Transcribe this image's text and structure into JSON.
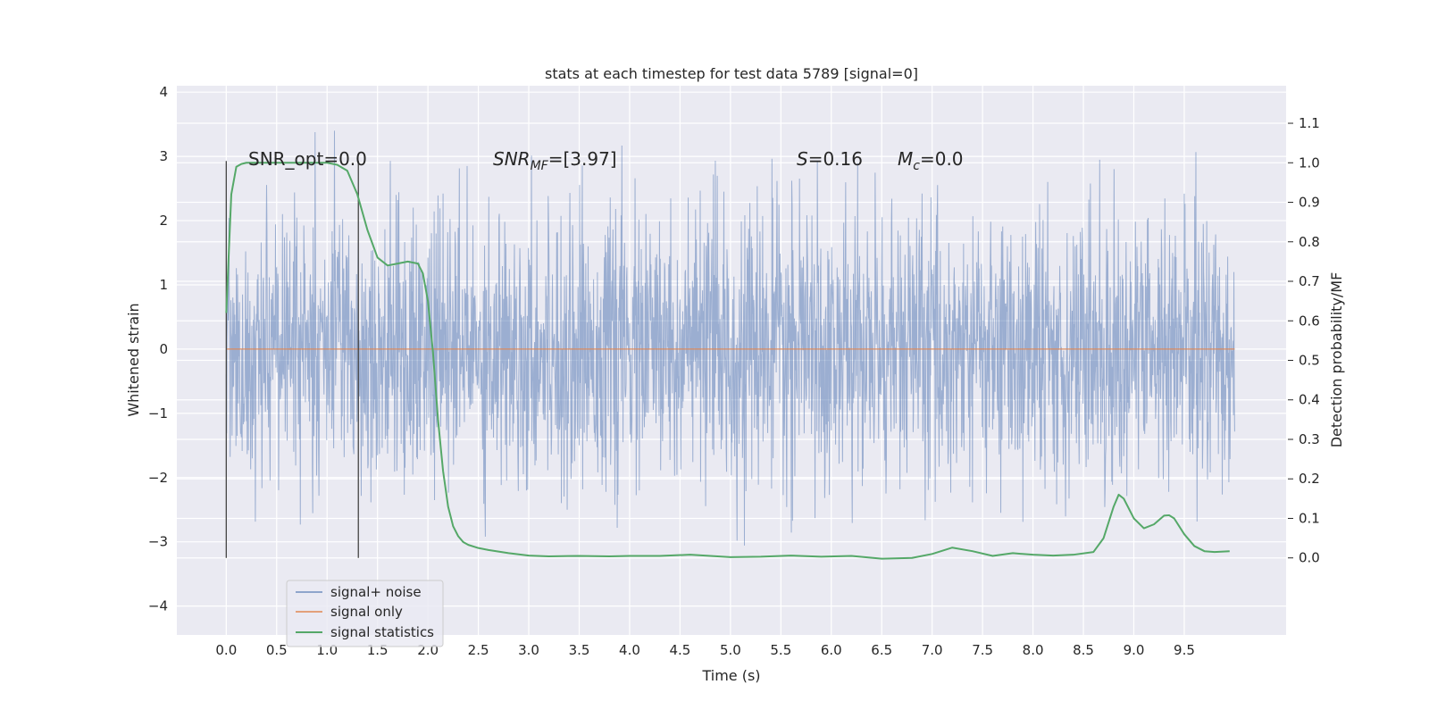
{
  "chart_data": {
    "type": "line",
    "title": "stats at each timestep for test data 5789 [signal=0]",
    "xlabel": "Time (s)",
    "ylabel": "Whitened strain",
    "y2label": "Detection probability/MF",
    "xlim": [
      -0.49,
      10.51
    ],
    "ylim": [
      -4.45,
      4.1
    ],
    "y2lim": [
      -0.195,
      1.195
    ],
    "grid": true,
    "x_ticks": [
      "0.0",
      "0.5",
      "1.0",
      "1.5",
      "2.0",
      "2.5",
      "3.0",
      "3.5",
      "4.0",
      "4.5",
      "5.0",
      "5.5",
      "6.0",
      "6.5",
      "7.0",
      "7.5",
      "8.0",
      "8.5",
      "9.0",
      "9.5"
    ],
    "y_ticks": [
      "4",
      "3",
      "2",
      "1",
      "0",
      "−1",
      "−2",
      "−3",
      "−4"
    ],
    "y2_ticks": [
      "0.0",
      "0.1",
      "0.2",
      "0.3",
      "0.4",
      "0.5",
      "0.6",
      "0.7",
      "0.8",
      "0.9",
      "1.0",
      "1.1"
    ],
    "legend_position": "lower-left",
    "legend": [
      "signal+ noise",
      "signal only",
      "signal statistics"
    ],
    "annotations": {
      "snr_opt": "SNR_opt=0.0",
      "snr_mf_sym": "SNR",
      "snr_mf_sub": "MF",
      "snr_mf_val": "=[3.97]",
      "s_sym": "S",
      "s_val": "=0.16",
      "mc_sym": "M",
      "mc_sub": "c",
      "mc_val": "=0.0"
    },
    "vlines_x": [
      0.0,
      1.31
    ],
    "series": [
      {
        "name": "signal+ noise",
        "color": "#4c72b0",
        "axis": "left",
        "x_range": [
          0.0,
          10.0
        ],
        "envelope": "dense noise, |y| mostly < 2.5, extremes -3.6 to 3.72"
      },
      {
        "name": "signal only",
        "color": "#dd8452",
        "axis": "left",
        "x": [
          0.0,
          10.0
        ],
        "y": [
          0.0,
          0.0
        ]
      },
      {
        "name": "signal statistics",
        "color": "#55a868",
        "axis": "right",
        "x": [
          0.0,
          0.05,
          0.1,
          0.15,
          0.2,
          0.3,
          0.5,
          0.8,
          1.0,
          1.1,
          1.2,
          1.3,
          1.4,
          1.5,
          1.6,
          1.7,
          1.8,
          1.9,
          1.95,
          2.0,
          2.05,
          2.1,
          2.15,
          2.2,
          2.25,
          2.3,
          2.35,
          2.4,
          2.5,
          2.6,
          2.8,
          3.0,
          3.2,
          3.5,
          3.8,
          4.0,
          4.3,
          4.6,
          4.8,
          5.0,
          5.3,
          5.6,
          5.9,
          6.2,
          6.5,
          6.8,
          7.0,
          7.2,
          7.4,
          7.6,
          7.8,
          8.0,
          8.2,
          8.4,
          8.6,
          8.7,
          8.8,
          8.85,
          8.9,
          9.0,
          9.1,
          9.2,
          9.3,
          9.35,
          9.4,
          9.5,
          9.6,
          9.7,
          9.8,
          9.95
        ],
        "y": [
          0.62,
          0.92,
          0.99,
          0.997,
          1.0,
          1.0,
          1.0,
          1.0,
          1.0,
          0.995,
          0.98,
          0.92,
          0.83,
          0.76,
          0.74,
          0.745,
          0.75,
          0.745,
          0.72,
          0.65,
          0.52,
          0.35,
          0.22,
          0.13,
          0.08,
          0.055,
          0.04,
          0.033,
          0.025,
          0.02,
          0.012,
          0.006,
          0.004,
          0.005,
          0.004,
          0.005,
          0.005,
          0.008,
          0.005,
          0.002,
          0.003,
          0.006,
          0.003,
          0.005,
          -0.002,
          0.0,
          0.01,
          0.026,
          0.017,
          0.005,
          0.012,
          0.008,
          0.006,
          0.008,
          0.015,
          0.05,
          0.13,
          0.16,
          0.15,
          0.1,
          0.075,
          0.085,
          0.107,
          0.108,
          0.1,
          0.06,
          0.03,
          0.017,
          0.015,
          0.017
        ]
      }
    ]
  }
}
